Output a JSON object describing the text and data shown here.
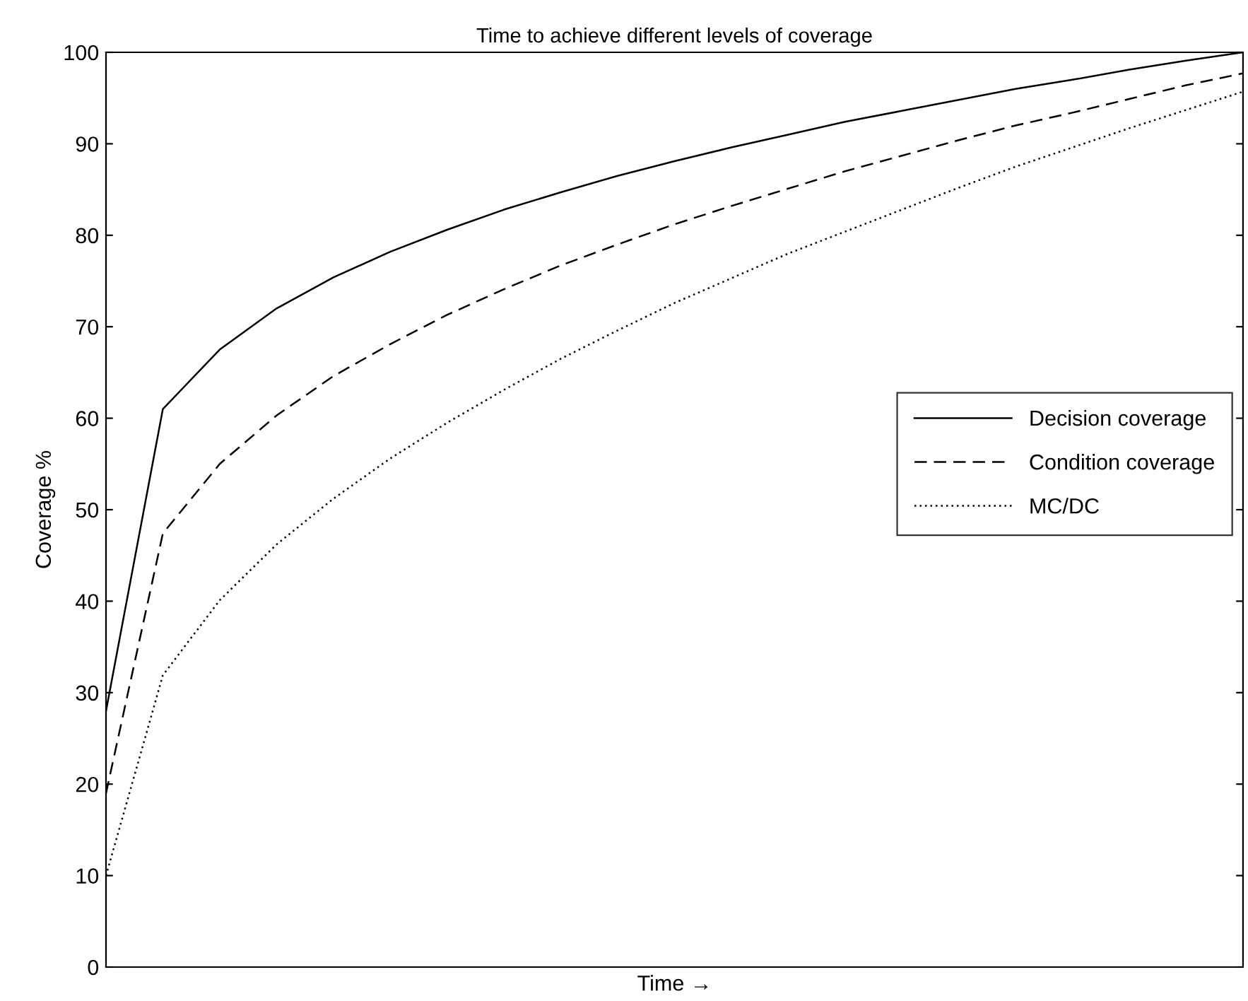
{
  "chart_data": {
    "type": "line",
    "title": "Time to achieve different levels of coverage",
    "xlabel": "Time →",
    "ylabel": "Coverage %",
    "categories": [
      null,
      null,
      null,
      null,
      null,
      null,
      null,
      null,
      null,
      null,
      null,
      null,
      null,
      null,
      null,
      null,
      null,
      null,
      null,
      null,
      null
    ],
    "series": [
      {
        "name": "Decision coverage",
        "color": "#000000",
        "line_style": "solid",
        "values": [
          28,
          61.0,
          67.5,
          72.0,
          75.4,
          78.2,
          80.6,
          82.8,
          84.7,
          86.5,
          88.1,
          89.6,
          91.0,
          92.4,
          93.6,
          94.8,
          96.0,
          97.0,
          98.1,
          99.1,
          100
        ]
      },
      {
        "name": "Condition coverage",
        "color": "#000000",
        "line_style": "dashed",
        "values": [
          19,
          47.4,
          55.0,
          60.3,
          64.6,
          68.1,
          71.3,
          74.1,
          76.7,
          79.0,
          81.2,
          83.2,
          85.1,
          87.0,
          88.7,
          90.4,
          92.0,
          93.4,
          94.9,
          96.4,
          97.7
        ]
      },
      {
        "name": "MC/DC",
        "color": "#000000",
        "line_style": "dotted",
        "values": [
          10,
          31.9,
          40.1,
          46.2,
          51.2,
          55.6,
          59.5,
          63.1,
          66.5,
          69.6,
          72.6,
          75.3,
          78.0,
          80.4,
          82.8,
          85.2,
          87.5,
          89.6,
          91.7,
          93.7,
          95.7
        ]
      }
    ],
    "ylim": [
      0,
      100
    ],
    "yticks": [
      0,
      10,
      20,
      30,
      40,
      50,
      60,
      70,
      80,
      90,
      100
    ],
    "grid": false,
    "legend": "center right",
    "marker": "none",
    "tick_labels": "y"
  }
}
